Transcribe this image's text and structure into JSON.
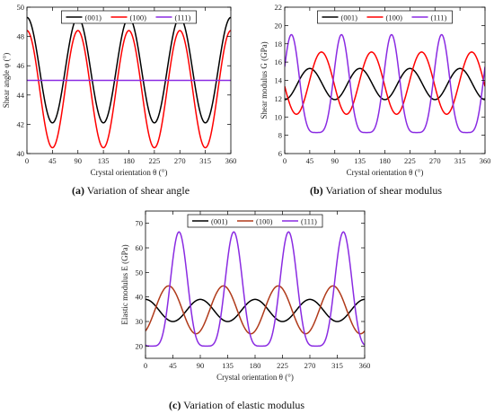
{
  "figure": {
    "captions": [
      {
        "letter": "(a)",
        "text": " Variation of shear angle"
      },
      {
        "letter": "(b)",
        "text": " Variation of shear modulus"
      },
      {
        "letter": "(c)",
        "text": " Variation of elastic modulus"
      }
    ]
  },
  "chart_data": [
    {
      "type": "line",
      "title": "",
      "xlabel": "Crystal orientation θ (°)",
      "ylabel": "Shear angle φ (°)",
      "xlim": [
        0,
        360
      ],
      "ylim": [
        40,
        50
      ],
      "xticks": [
        0,
        45,
        90,
        135,
        180,
        225,
        270,
        315,
        360
      ],
      "yticks": [
        40,
        42,
        44,
        46,
        48,
        50
      ],
      "legend": "top-center",
      "grid": false,
      "series": [
        {
          "name": "(001)",
          "color": "#000000",
          "mean": 45.7,
          "amplitude": 3.6,
          "period": 90,
          "phase": 0,
          "type": "cosine"
        },
        {
          "name": "(100)",
          "color": "#ff0000",
          "mean": 44.4,
          "amplitude": 4.0,
          "period": 90,
          "phase": 0,
          "type": "cosine"
        },
        {
          "name": "(111)",
          "color": "#8a2be2",
          "mean": 45.0,
          "amplitude": 0,
          "period": 90,
          "phase": 0,
          "type": "cosine"
        }
      ]
    },
    {
      "type": "line",
      "title": "",
      "xlabel": "Crystal orientation θ (°)",
      "ylabel": "Shear modulus G (GPa)",
      "xlim": [
        0,
        360
      ],
      "ylim": [
        6,
        22
      ],
      "xticks": [
        0,
        45,
        90,
        135,
        180,
        225,
        270,
        315,
        360
      ],
      "yticks": [
        6,
        8,
        10,
        12,
        14,
        16,
        18,
        20,
        22
      ],
      "legend": "top-center",
      "grid": false,
      "series": [
        {
          "name": "(001)",
          "color": "#000000",
          "mean": 13.6,
          "amplitude": 1.7,
          "period": 90,
          "phase": 45,
          "type": "cosine"
        },
        {
          "name": "(100)",
          "color": "#ff0000",
          "mean": 13.7,
          "amplitude": 3.4,
          "period": 90,
          "phase": 66,
          "type": "cosine"
        },
        {
          "name": "(111)",
          "color": "#8a2be2",
          "min": 8.3,
          "max": 19.0,
          "period": 90,
          "phase": 12,
          "type": "peaked"
        }
      ]
    },
    {
      "type": "line",
      "title": "",
      "xlabel": "Crystal orientation θ (°)",
      "ylabel": "Elastic modulus E (GPa)",
      "xlim": [
        0,
        360
      ],
      "ylim": [
        15,
        75
      ],
      "xticks": [
        0,
        45,
        90,
        135,
        180,
        225,
        270,
        315,
        360
      ],
      "yticks": [
        20,
        30,
        40,
        50,
        60,
        70
      ],
      "legend": "top-center",
      "grid": false,
      "series": [
        {
          "name": "(001)",
          "color": "#000000",
          "mean": 34.5,
          "amplitude": 4.5,
          "period": 90,
          "phase": 0,
          "type": "cosine"
        },
        {
          "name": "(100)",
          "color": "#b03a1a",
          "mean": 34.75,
          "amplitude": 9.75,
          "period": 90,
          "phase": 38,
          "type": "cosine"
        },
        {
          "name": "(111)",
          "color": "#8a2be2",
          "min": 20.0,
          "max": 66.5,
          "period": 90,
          "phase": 55,
          "type": "peaked"
        }
      ]
    }
  ]
}
